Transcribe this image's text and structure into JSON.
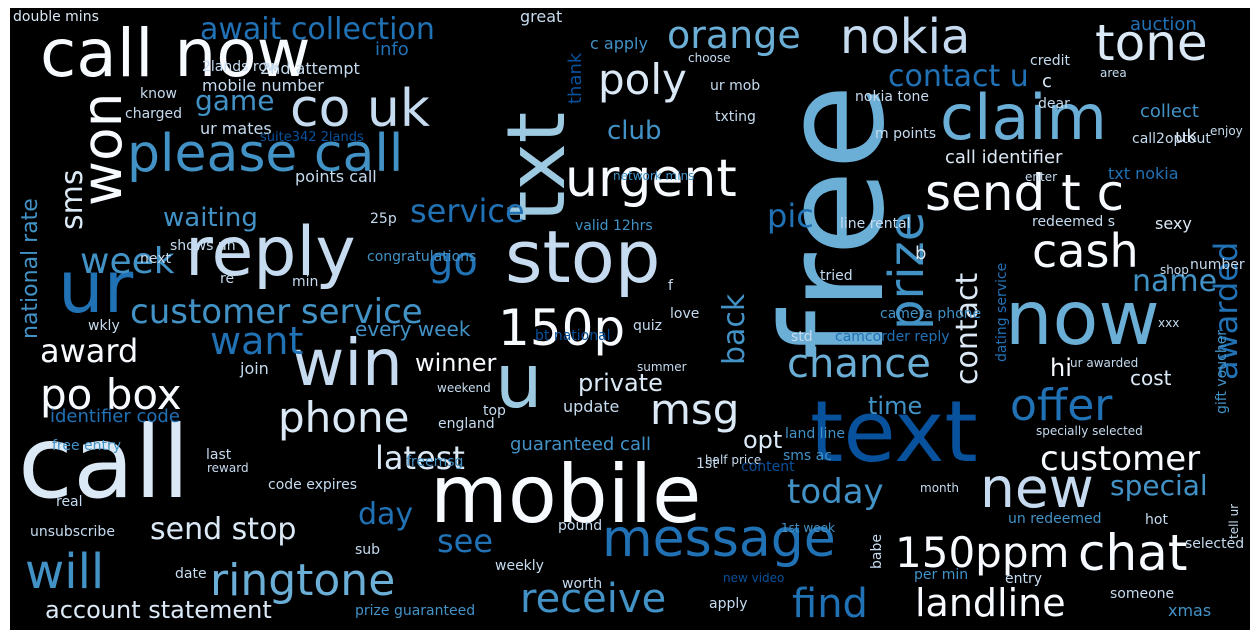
{
  "words": [
    "call",
    "free",
    "text",
    "mobile",
    "txt",
    "now",
    "stop",
    "reply",
    "u",
    "call now",
    "ur",
    "claim",
    "win",
    "message",
    "won",
    "new",
    "please call",
    "urgent",
    "co uk",
    "send t c",
    "prize",
    "chat",
    "nokia",
    "150p",
    "150ppm",
    "will",
    "ringtone",
    "tone",
    "cash",
    "landline",
    "receive",
    "phone",
    "po box",
    "offer",
    "find",
    "chance",
    "orange",
    "poly",
    "msg",
    "customer service",
    "awarded",
    "contact",
    "want",
    "go",
    "pic",
    "customer",
    "today",
    "service",
    "week",
    "sms",
    "await collection",
    "contact u",
    "award",
    "back",
    "see",
    "latest",
    "special",
    "day",
    "name",
    "send stop",
    "account statement",
    "private",
    "winner",
    "club",
    "national rate",
    "game",
    "time",
    "waiting",
    "every week",
    "call identifier",
    "identifier code",
    "guaranteed call",
    "opt",
    "hi",
    "cost",
    "collect",
    "auction",
    "info",
    "thank",
    "2nd attempt",
    "c apply",
    "mobile number",
    "credit",
    "great",
    "double mins",
    "2lands row",
    "ur mates",
    "nokia tone",
    "ur mob",
    "choose",
    "txting",
    "charged",
    "know",
    "call2optout",
    "dear",
    "area",
    "enjoy",
    "uk",
    "txt nokia",
    "m points",
    "points call",
    "shows un",
    "25p",
    "valid 12hrs",
    "line rental",
    "redeemed s",
    "sexy",
    "dating service",
    "camcorder reply",
    "camera phone",
    "congratulations",
    "tried",
    "next",
    "min",
    "re",
    "wkly",
    "join",
    "free entry",
    "last",
    "reward",
    "code expires",
    "real",
    "unsubscribe",
    "date",
    "weekly",
    "sub",
    "pound",
    "worth",
    "prize guaranteed",
    "apply",
    "xmas",
    "someone",
    "tell ur",
    "entry",
    "selected",
    "hot",
    "1st week",
    "un redeemed",
    "month",
    "babe",
    "half price",
    "summer",
    "sms ac",
    "land line",
    "update",
    "top",
    "england",
    "weekend",
    "1st",
    "love",
    "std",
    "ur awarded",
    "xxx",
    "quiz",
    "shop",
    "content",
    "network mins",
    "number",
    "gift voucher",
    "per min",
    "new video",
    "suite342 2lands",
    "freemsg",
    "enter",
    "b",
    "f",
    "c",
    "specially selected",
    "bt national"
  ]
}
